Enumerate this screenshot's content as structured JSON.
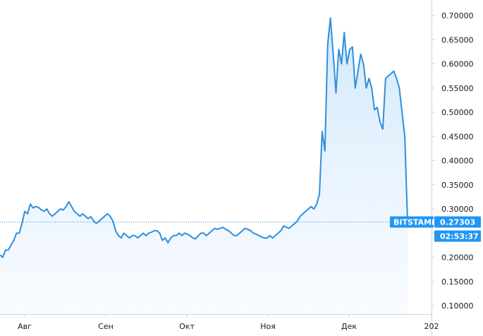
{
  "chart_data": {
    "type": "area",
    "title": "",
    "xlabel": "",
    "ylabel": "",
    "ylim": [
      0.08,
      0.72
    ],
    "y_ticks": [
      "0.10000",
      "0.15000",
      "0.20000",
      "0.25000",
      "0.30000",
      "0.35000",
      "0.40000",
      "0.45000",
      "0.50000",
      "0.55000",
      "0.60000",
      "0.65000",
      "0.70000"
    ],
    "x_tick_labels": [
      "Авг",
      "Сен",
      "Окт",
      "Ноя",
      "Дек",
      "202"
    ],
    "grid": false,
    "legend": "none",
    "colors": {
      "line": "#2f8fdc",
      "fill_top": "#cfe6fb",
      "fill_bottom": "#f3f9ff",
      "badge": "#2196f3",
      "axis": "#d1d4dc",
      "guide": "#2f8fdc"
    },
    "series": [
      {
        "values": [
          0.205,
          0.2,
          0.215,
          0.215,
          0.225,
          0.235,
          0.25,
          0.25,
          0.27,
          0.295,
          0.29,
          0.31,
          0.302,
          0.305,
          0.303,
          0.298,
          0.295,
          0.3,
          0.29,
          0.285,
          0.29,
          0.295,
          0.3,
          0.298,
          0.305,
          0.315,
          0.305,
          0.295,
          0.29,
          0.285,
          0.29,
          0.285,
          0.28,
          0.284,
          0.275,
          0.27,
          0.275,
          0.28,
          0.285,
          0.29,
          0.285,
          0.275,
          0.255,
          0.245,
          0.24,
          0.25,
          0.245,
          0.24,
          0.245,
          0.245,
          0.24,
          0.245,
          0.25,
          0.245,
          0.25,
          0.252,
          0.255,
          0.255,
          0.25,
          0.235,
          0.24,
          0.23,
          0.24,
          0.245,
          0.245,
          0.25,
          0.245,
          0.25,
          0.248,
          0.245,
          0.24,
          0.238,
          0.245,
          0.25,
          0.25,
          0.245,
          0.25,
          0.255,
          0.26,
          0.258,
          0.26,
          0.262,
          0.258,
          0.255,
          0.25,
          0.245,
          0.245,
          0.25,
          0.255,
          0.26,
          0.258,
          0.255,
          0.25,
          0.248,
          0.245,
          0.242,
          0.24,
          0.24,
          0.245,
          0.24,
          0.245,
          0.25,
          0.255,
          0.265,
          0.262,
          0.26,
          0.265,
          0.27,
          0.275,
          0.285,
          0.29,
          0.295,
          0.3,
          0.305,
          0.3,
          0.31,
          0.33,
          0.46,
          0.42,
          0.64,
          0.695,
          0.62,
          0.54,
          0.63,
          0.6,
          0.665,
          0.6,
          0.63,
          0.635,
          0.55,
          0.585,
          0.62,
          0.6,
          0.55,
          0.57,
          0.55,
          0.505,
          0.51,
          0.48,
          0.465,
          0.57,
          0.575,
          0.58,
          0.585,
          0.57,
          0.55,
          0.5,
          0.45,
          0.273
        ]
      }
    ],
    "last_value": 0.27303,
    "price_label": "0.27303",
    "exchange_label": "BITSTAMP",
    "countdown_label": "02:53:37"
  }
}
